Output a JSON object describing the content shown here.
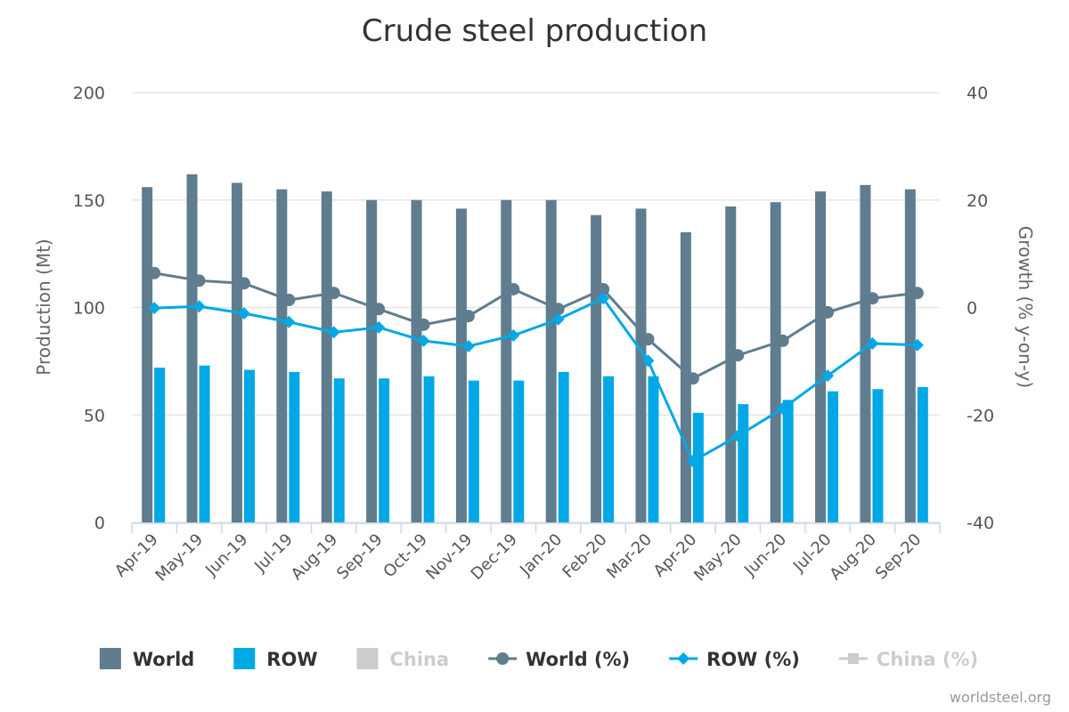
{
  "chart_data": {
    "type": "combo",
    "title": "Crude steel production",
    "categories": [
      "Apr-19",
      "May-19",
      "Jun-19",
      "Jul-19",
      "Aug-19",
      "Sep-19",
      "Oct-19",
      "Nov-19",
      "Dec-19",
      "Jan-20",
      "Feb-20",
      "Mar-20",
      "Apr-20",
      "May-20",
      "Jun-20",
      "Jul-20",
      "Aug-20",
      "Sep-20"
    ],
    "y_label": "Production (Mt)",
    "y2_label": "Growth (% y-on-y)",
    "ylim": [
      0,
      200
    ],
    "yticks": [
      0,
      50,
      100,
      150,
      200
    ],
    "y2lim": [
      -40,
      40
    ],
    "y2ticks": [
      -40,
      -20,
      0,
      20,
      40
    ],
    "grid": true,
    "series": [
      {
        "name": "World",
        "type": "column",
        "color": "#5f7d8e",
        "values": [
          156,
          162,
          158,
          155,
          154,
          150,
          150,
          146,
          150,
          150,
          143,
          146,
          135,
          147,
          149,
          154,
          157,
          155
        ]
      },
      {
        "name": "ROW",
        "type": "column",
        "color": "#00a8e6",
        "values": [
          72,
          73,
          71,
          70,
          67,
          67,
          68,
          66,
          66,
          70,
          68,
          68,
          51,
          55,
          57,
          61,
          62,
          63
        ]
      },
      {
        "name": "China",
        "type": "column",
        "color": "#cccccc",
        "visible": false
      },
      {
        "name": "World (%)",
        "type": "line",
        "axis": "y2",
        "marker": "circle",
        "color": "#5f7d8e",
        "values": [
          6.4,
          5.0,
          4.5,
          1.4,
          2.7,
          -0.3,
          -3.2,
          -1.6,
          3.4,
          -0.3,
          3.4,
          -5.9,
          -13.2,
          -8.9,
          -6.2,
          -0.9,
          1.7,
          2.7
        ]
      },
      {
        "name": "ROW (%)",
        "type": "line",
        "axis": "y2",
        "marker": "diamond",
        "color": "#00a8e6",
        "values": [
          -0.1,
          0.2,
          -1.1,
          -2.7,
          -4.6,
          -3.7,
          -6.2,
          -7.2,
          -5.2,
          -2.2,
          1.7,
          -9.9,
          -28.6,
          -23.9,
          -18.8,
          -12.7,
          -6.7,
          -7.0
        ]
      },
      {
        "name": "China (%)",
        "type": "line",
        "axis": "y2",
        "marker": "square",
        "color": "#cccccc",
        "visible": false
      }
    ],
    "credits": "worldsteel.org"
  }
}
